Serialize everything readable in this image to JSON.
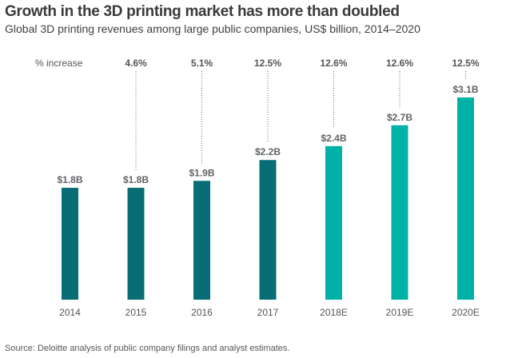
{
  "chart_data": {
    "type": "bar",
    "title": "Growth in the 3D printing market has more than doubled",
    "subtitle": "Global 3D printing revenues among large public companies, US$ billion, 2014–2020",
    "xlabel": "",
    "ylabel": "",
    "categories": [
      "2014",
      "2015",
      "2016",
      "2017",
      "2018E",
      "2019E",
      "2020E"
    ],
    "values": [
      1.8,
      1.8,
      1.9,
      2.2,
      2.4,
      2.7,
      3.1
    ],
    "value_labels": [
      "$1.8B",
      "$1.8B",
      "$1.9B",
      "$2.2B",
      "$2.4B",
      "$2.7B",
      "$3.1B"
    ],
    "percent_increase_label": "% increase",
    "percent_increase": [
      null,
      "4.6%",
      "5.1%",
      "12.5%",
      "12.6%",
      "12.6%",
      "12.5%"
    ],
    "estimated": [
      false,
      false,
      false,
      false,
      true,
      true,
      true
    ],
    "colors": {
      "actual": "#086d74",
      "estimate": "#00b1a8"
    },
    "ylim": [
      0,
      3.1
    ],
    "grid": false,
    "legend": "none",
    "source": "Source: Deloitte analysis of public company filings and analyst estimates."
  }
}
